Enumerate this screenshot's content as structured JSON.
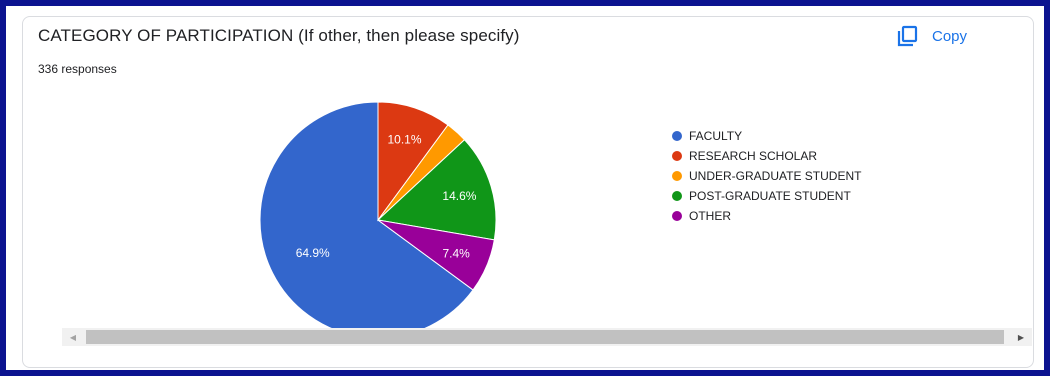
{
  "question": {
    "title": "CATEGORY OF PARTICIPATION (If other, then please specify)",
    "responses": "336 responses"
  },
  "copy_button": {
    "label": "Copy",
    "icon": "copy-icon",
    "color": "#1a73e8"
  },
  "scrollbar": {
    "left_arrow": "◀",
    "right_arrow": "▶"
  },
  "chart_data": {
    "type": "pie",
    "title": "CATEGORY OF PARTICIPATION (If other, then please specify)",
    "subtitle": "336 responses",
    "legend_position": "right",
    "slices": [
      {
        "label": "FACULTY",
        "value": 64.9,
        "display": "64.9%",
        "color": "#3366cc"
      },
      {
        "label": "RESEARCH SCHOLAR",
        "value": 10.1,
        "display": "10.1%",
        "color": "#dc3912"
      },
      {
        "label": "UNDER-GRADUATE STUDENT",
        "value": 3.0,
        "display": "",
        "color": "#ff9900"
      },
      {
        "label": "POST-GRADUATE STUDENT",
        "value": 14.6,
        "display": "14.6%",
        "color": "#109618"
      },
      {
        "label": "OTHER",
        "value": 7.4,
        "display": "7.4%",
        "color": "#990099"
      }
    ]
  }
}
